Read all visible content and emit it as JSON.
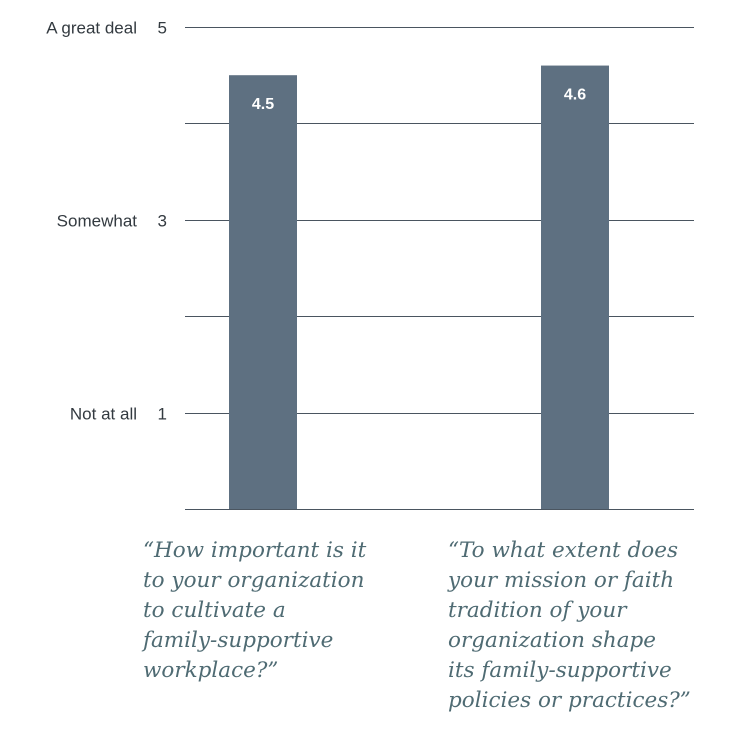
{
  "chart_data": {
    "type": "bar",
    "categories": [
      "“How important is it\nto your organization\nto cultivate a\nfamily-supportive\nworkplace?”",
      "“To what extent does\nyour mission or faith\ntradition of your\norganization shape\nits family-supportive\npolicies or practices?”"
    ],
    "values": [
      4.5,
      4.6
    ],
    "value_labels": [
      "4.5",
      "4.6"
    ],
    "ylim": [
      0,
      5
    ],
    "y_ticks": [
      {
        "value": 5,
        "number": "5",
        "label": "A great deal"
      },
      {
        "value": 4,
        "number": "",
        "label": ""
      },
      {
        "value": 3,
        "number": "3",
        "label": "Somewhat"
      },
      {
        "value": 2,
        "number": "",
        "label": ""
      },
      {
        "value": 1,
        "number": "1",
        "label": "Not at all"
      },
      {
        "value": 0,
        "number": "",
        "label": ""
      }
    ],
    "grid": true,
    "bar_color": "#5e7081",
    "value_label_color": "#ffffff",
    "category_label_color": "#4f6b73"
  }
}
